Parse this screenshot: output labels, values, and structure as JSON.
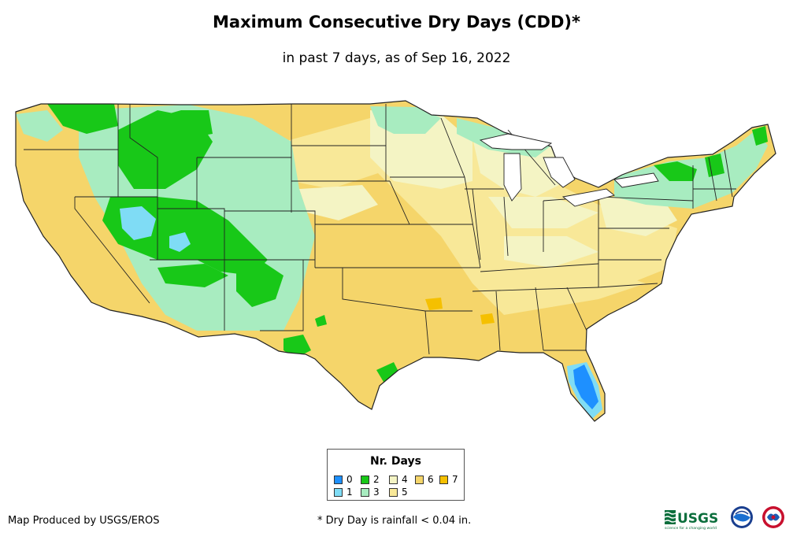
{
  "title": "Maximum Consecutive Dry Days (CDD)*",
  "subtitle": "in past 7 days, as of Sep 16, 2022",
  "legend": {
    "title": "Nr. Days",
    "items": [
      {
        "label": "0",
        "color": "#1e90ff"
      },
      {
        "label": "1",
        "color": "#7fdcf5"
      },
      {
        "label": "2",
        "color": "#18c818"
      },
      {
        "label": "3",
        "color": "#a8ecc0"
      },
      {
        "label": "4",
        "color": "#f4f4c4"
      },
      {
        "label": "5",
        "color": "#f8e898"
      },
      {
        "label": "6",
        "color": "#f5d56a"
      },
      {
        "label": "7",
        "color": "#f5c000"
      }
    ]
  },
  "footer": {
    "producer": "Map Produced by USGS/EROS",
    "note": "* Dry Day is rainfall < 0.04 in."
  },
  "logos": {
    "usgs": "USGS",
    "usgs_tagline": "science for a changing world",
    "noaa": "NOAA",
    "nws": "NWS"
  }
}
